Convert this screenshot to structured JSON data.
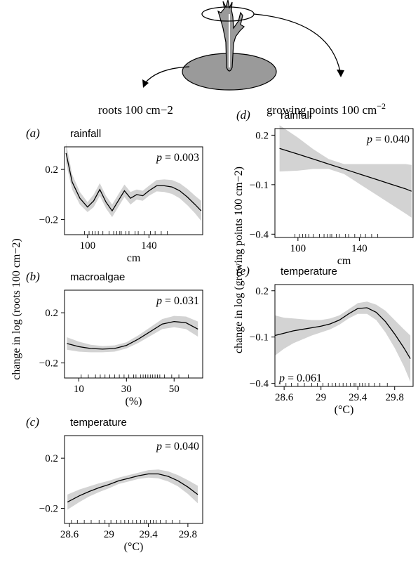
{
  "header": {
    "left_label": "roots 100 cm−2",
    "right_label_base": "growing points 100 cm",
    "right_label_sup": "−2"
  },
  "y_axis_left": "change in log (roots 100 cm−2)",
  "y_axis_right": "change in log (growing points 100 cm−2)",
  "colors": {
    "band": "#d3d3d3",
    "line": "#000000"
  },
  "chart_data": [
    {
      "panel": "(a)",
      "title": "rainfall",
      "pvalue": "p = 0.003",
      "xlabel": "cm",
      "type": "line",
      "xlim": [
        85,
        175
      ],
      "ylim": [
        -0.32,
        0.38
      ],
      "xticks": [
        100,
        140
      ],
      "yticks": [
        0.2,
        -0.2
      ],
      "x": [
        86,
        90,
        95,
        100,
        104,
        108,
        112,
        116,
        120,
        124,
        128,
        132,
        136,
        140,
        145,
        150,
        155,
        160,
        165,
        170,
        174
      ],
      "y": [
        0.33,
        0.1,
        -0.03,
        -0.1,
        -0.05,
        0.04,
        -0.06,
        -0.13,
        -0.05,
        0.03,
        -0.03,
        0.0,
        -0.01,
        0.03,
        0.07,
        0.07,
        0.06,
        0.03,
        -0.02,
        -0.08,
        -0.13
      ],
      "band": [
        0.08,
        0.06,
        0.05,
        0.04,
        0.05,
        0.05,
        0.05,
        0.05,
        0.05,
        0.05,
        0.05,
        0.04,
        0.04,
        0.04,
        0.045,
        0.05,
        0.055,
        0.06,
        0.065,
        0.07,
        0.08
      ],
      "rug": [
        98,
        101,
        103,
        105,
        107,
        110,
        114,
        117,
        119,
        121,
        122,
        125,
        127,
        131,
        133,
        137,
        141,
        144,
        148,
        152
      ]
    },
    {
      "panel": "(b)",
      "title": "macroalgae",
      "pvalue": "p = 0.031",
      "xlabel": "(%)",
      "type": "line",
      "xlim": [
        4,
        62
      ],
      "ylim": [
        -0.32,
        0.38
      ],
      "xticks": [
        10,
        30,
        50
      ],
      "yticks": [
        0.2,
        -0.2
      ],
      "x": [
        5,
        10,
        15,
        20,
        25,
        30,
        35,
        40,
        45,
        50,
        55,
        60
      ],
      "y": [
        -0.045,
        -0.07,
        -0.085,
        -0.09,
        -0.085,
        -0.06,
        -0.01,
        0.05,
        0.11,
        0.13,
        0.12,
        0.07
      ],
      "band": [
        0.05,
        0.04,
        0.03,
        0.025,
        0.025,
        0.025,
        0.03,
        0.035,
        0.04,
        0.045,
        0.05,
        0.06
      ],
      "rug": [
        11,
        14,
        17,
        19,
        21,
        23,
        25,
        27,
        29,
        31,
        33,
        34,
        36,
        37,
        38,
        39,
        40,
        41,
        42,
        43,
        44,
        46,
        49,
        52,
        56
      ]
    },
    {
      "panel": "(c)",
      "title": "temperature",
      "pvalue": "p = 0.040",
      "xlabel": "(°C)",
      "type": "line",
      "xlim": [
        28.55,
        29.95
      ],
      "ylim": [
        -0.32,
        0.38
      ],
      "xticks": [
        28.6,
        29.0,
        29.4,
        29.8
      ],
      "yticks": [
        0.2,
        -0.2
      ],
      "x": [
        28.58,
        28.7,
        28.8,
        28.9,
        29.0,
        29.1,
        29.2,
        29.3,
        29.4,
        29.5,
        29.6,
        29.7,
        29.8,
        29.9
      ],
      "y": [
        -0.15,
        -0.1,
        -0.065,
        -0.035,
        -0.01,
        0.02,
        0.04,
        0.06,
        0.075,
        0.075,
        0.055,
        0.02,
        -0.03,
        -0.09
      ],
      "band": [
        0.06,
        0.05,
        0.04,
        0.035,
        0.03,
        0.025,
        0.025,
        0.025,
        0.03,
        0.035,
        0.04,
        0.045,
        0.055,
        0.07
      ],
      "rug": [
        28.62,
        28.68,
        28.75,
        28.82,
        28.9,
        28.96,
        29.02,
        29.08,
        29.12,
        29.16,
        29.2,
        29.24,
        29.28,
        29.32,
        29.36,
        29.38,
        29.42,
        29.45,
        29.48,
        29.52,
        29.58,
        29.64,
        29.72
      ]
    },
    {
      "panel": "(d)",
      "title": "rainfall",
      "pvalue": "p = 0.040",
      "xlabel": "cm",
      "type": "line",
      "xlim": [
        85,
        175
      ],
      "ylim": [
        -0.42,
        0.24
      ],
      "xticks": [
        100,
        140
      ],
      "yticks": [
        0.2,
        -0.1,
        -0.4
      ],
      "x": [
        88,
        100,
        110,
        120,
        130,
        140,
        150,
        160,
        170,
        174
      ],
      "y": [
        0.12,
        0.085,
        0.055,
        0.025,
        -0.005,
        -0.035,
        -0.065,
        -0.095,
        -0.125,
        -0.14
      ],
      "band": [
        0.14,
        0.1,
        0.06,
        0.03,
        0.03,
        0.06,
        0.09,
        0.12,
        0.15,
        0.16
      ],
      "rug": [
        98,
        101,
        103,
        105,
        107,
        110,
        114,
        117,
        119,
        121,
        122,
        125,
        127,
        131,
        133,
        137,
        141,
        144,
        148,
        152
      ]
    },
    {
      "panel": "(e)",
      "title": "temperature",
      "pvalue": "p = 0.061",
      "xlabel": "(°C)",
      "type": "line",
      "xlim": [
        28.5,
        30.0
      ],
      "ylim": [
        -0.42,
        0.24
      ],
      "xticks": [
        28.6,
        29.0,
        29.4,
        29.8
      ],
      "yticks": [
        0.2,
        -0.1,
        -0.4
      ],
      "x": [
        28.5,
        28.6,
        28.7,
        28.8,
        28.9,
        29.0,
        29.1,
        29.2,
        29.3,
        29.4,
        29.5,
        29.6,
        29.7,
        29.8,
        29.9,
        29.97
      ],
      "y": [
        -0.09,
        -0.075,
        -0.06,
        -0.05,
        -0.04,
        -0.03,
        -0.015,
        0.01,
        0.05,
        0.085,
        0.09,
        0.06,
        0.0,
        -0.08,
        -0.17,
        -0.24
      ],
      "band": [
        0.13,
        0.1,
        0.08,
        0.065,
        0.05,
        0.04,
        0.035,
        0.03,
        0.03,
        0.035,
        0.04,
        0.05,
        0.07,
        0.09,
        0.12,
        0.15
      ],
      "rug": [
        28.62,
        28.68,
        28.75,
        28.82,
        28.9,
        28.96,
        29.02,
        29.08,
        29.12,
        29.16,
        29.2,
        29.24,
        29.28,
        29.32,
        29.36,
        29.38,
        29.42,
        29.45,
        29.48,
        29.52,
        29.58,
        29.64,
        29.72
      ]
    }
  ]
}
